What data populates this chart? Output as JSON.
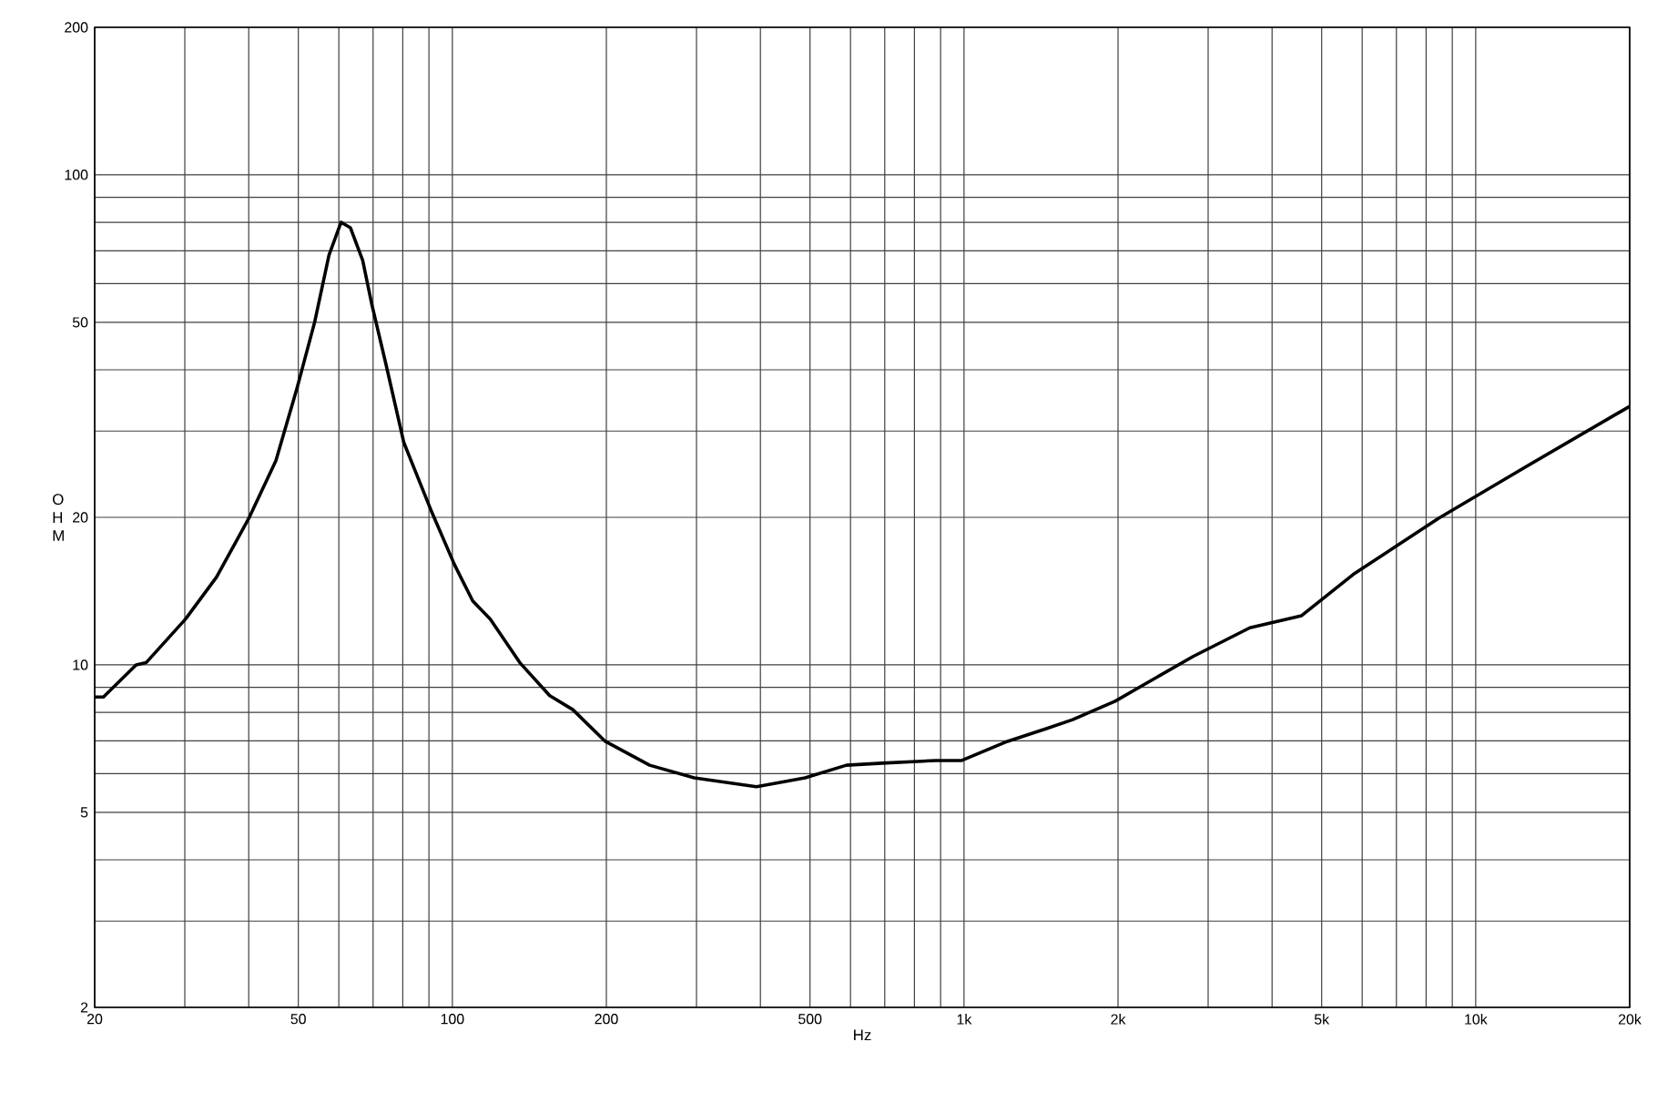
{
  "chart_data": {
    "type": "line",
    "xlabel": "Hz",
    "ylabel": "O H M",
    "log": "xy",
    "grid": true,
    "x": [
      20,
      20.8,
      24.1,
      25.2,
      30.1,
      34.6,
      40,
      45.2,
      49.7,
      53.8,
      57.4,
      60.6,
      63.2,
      66.8,
      69.6,
      74.2,
      80.4,
      90.8,
      101,
      109.6,
      118.6,
      135.5,
      155,
      172,
      199,
      243,
      297,
      393,
      489,
      589,
      691,
      880,
      990,
      1216,
      1448,
      1630,
      1974,
      2803,
      3619,
      4568,
      5766,
      8451,
      12400,
      20000
    ],
    "series": [
      {
        "color": "#000000",
        "values": [
          8.6,
          8.6,
          10,
          10.1,
          12.4,
          15.1,
          19.9,
          26.1,
          36.7,
          50,
          68.6,
          80,
          78,
          66.9,
          54.4,
          41,
          28.4,
          20.7,
          16,
          13.5,
          12.4,
          10.1,
          8.65,
          8.1,
          6.98,
          6.24,
          5.88,
          5.64,
          5.88,
          6.24,
          6.3,
          6.38,
          6.38,
          6.98,
          7.41,
          7.73,
          8.43,
          10.4,
          11.9,
          12.6,
          15.3,
          19.9,
          25.2,
          33.7
        ]
      }
    ],
    "xlim": [
      20,
      20000
    ],
    "xticks": [
      20,
      {
        "value": 30,
        "label": null
      },
      {
        "value": 40,
        "label": null
      },
      50,
      {
        "value": 60,
        "label": null
      },
      {
        "value": 70,
        "label": null
      },
      {
        "value": 80,
        "label": null
      },
      {
        "value": 90,
        "label": null
      },
      100,
      200,
      {
        "value": 300,
        "label": null
      },
      {
        "value": 400,
        "label": null
      },
      500,
      {
        "value": 600,
        "label": null
      },
      {
        "value": 700,
        "label": null
      },
      {
        "value": 800,
        "label": null
      },
      {
        "value": 900,
        "label": null
      },
      {
        "value": 1000,
        "label": "1k"
      },
      {
        "value": 2000,
        "label": "2k"
      },
      {
        "value": 3000,
        "label": null
      },
      {
        "value": 4000,
        "label": null
      },
      {
        "value": 5000,
        "label": "5k"
      },
      {
        "value": 6000,
        "label": null
      },
      {
        "value": 7000,
        "label": null
      },
      {
        "value": 8000,
        "label": null
      },
      {
        "value": 9000,
        "label": null
      },
      {
        "value": 10000,
        "label": "10k"
      },
      {
        "value": 20000,
        "label": "20k"
      }
    ],
    "ylim": [
      2,
      200
    ],
    "yticks": [
      2,
      {
        "value": 3,
        "label": null
      },
      {
        "value": 4,
        "label": null
      },
      5,
      {
        "value": 6,
        "label": null
      },
      {
        "value": 7,
        "label": null
      },
      {
        "value": 8,
        "label": null
      },
      {
        "value": 9,
        "label": null
      },
      10,
      20,
      {
        "value": 30,
        "label": null
      },
      {
        "value": 40,
        "label": null
      },
      50,
      {
        "value": 60,
        "label": null
      },
      {
        "value": 70,
        "label": null
      },
      {
        "value": 80,
        "label": null
      },
      {
        "value": 90,
        "label": null
      },
      100,
      200
    ]
  }
}
